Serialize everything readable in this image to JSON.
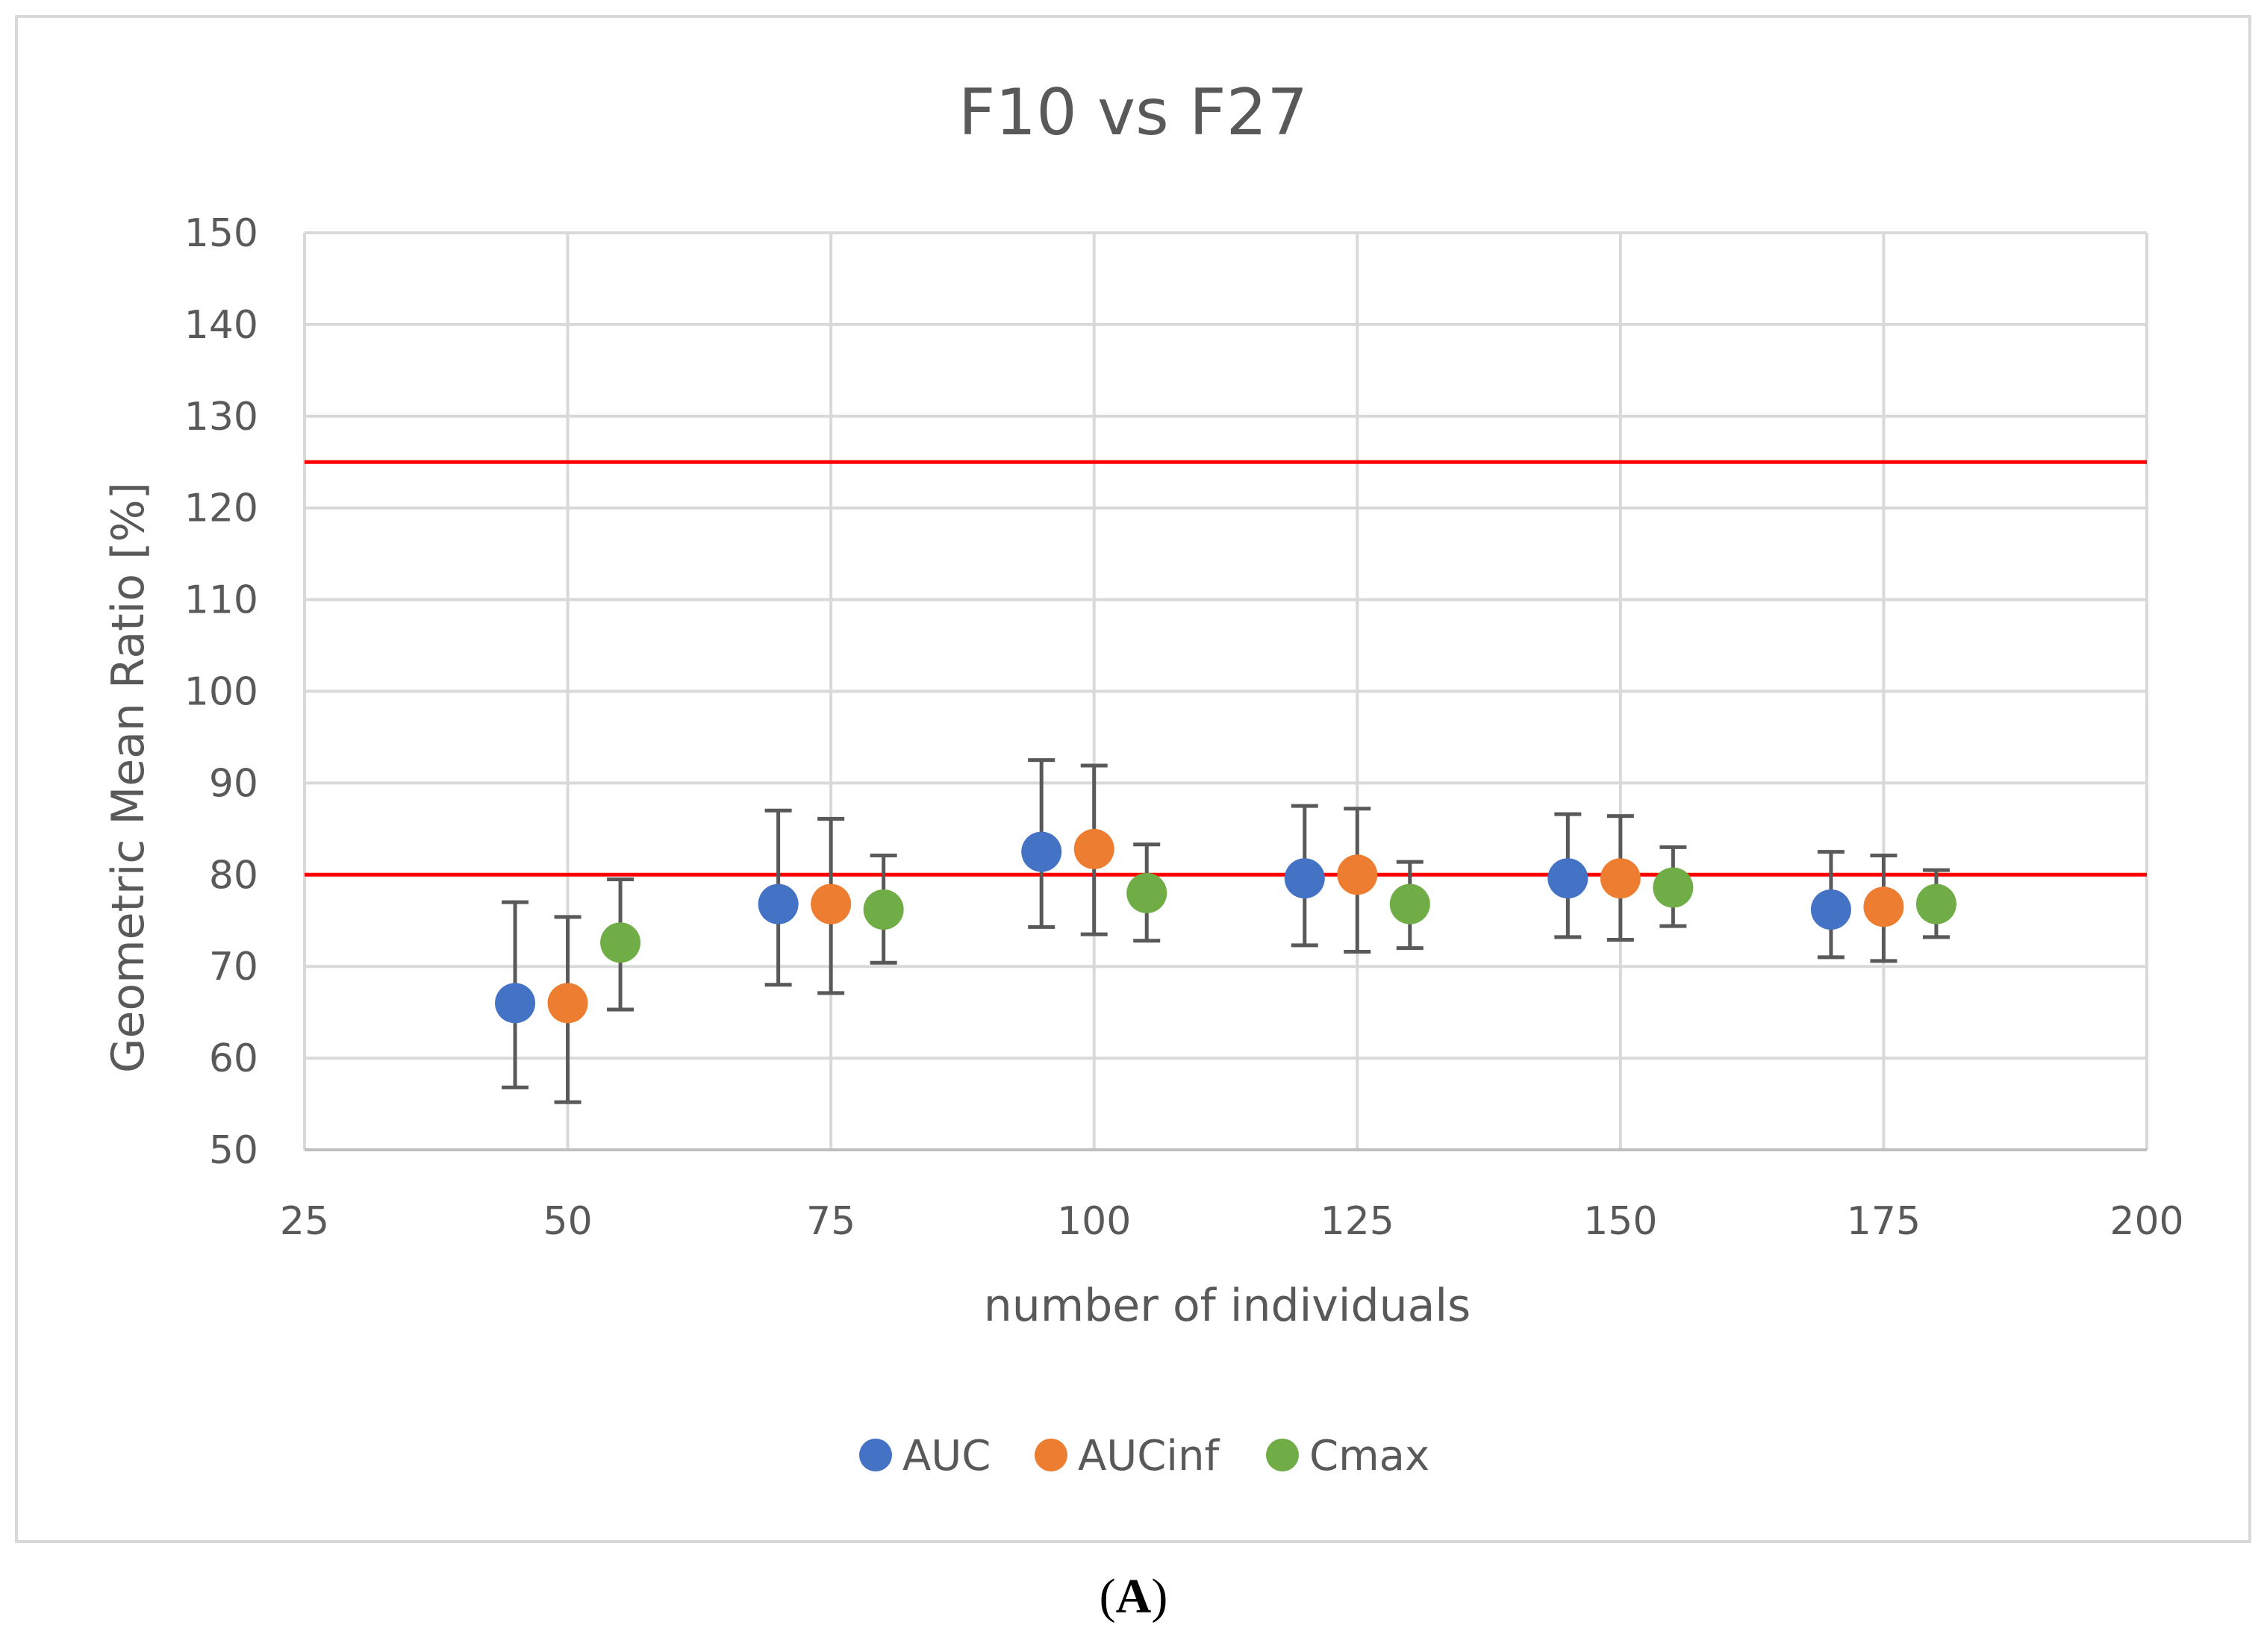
{
  "chart_data": {
    "type": "scatter",
    "title": "F10 vs F27",
    "xlabel": "number of individuals",
    "ylabel": "Geometric Mean Ratio [%]",
    "xlim": [
      25,
      200
    ],
    "ylim": [
      50,
      150
    ],
    "xticks": [
      25,
      50,
      75,
      100,
      125,
      150,
      175,
      200
    ],
    "yticks": [
      50,
      60,
      70,
      80,
      90,
      100,
      110,
      120,
      130,
      140,
      150
    ],
    "grid": true,
    "legend_position": "bottom",
    "reference_lines": [
      {
        "y": 125,
        "color": "#ff0000"
      },
      {
        "y": 80,
        "color": "#ff0000"
      }
    ],
    "series": [
      {
        "name": "AUC",
        "color": "#4472c4",
        "x": [
          45,
          70,
          95,
          120,
          145,
          170
        ],
        "y": [
          66,
          76.8,
          82.5,
          79.6,
          79.6,
          76.2
        ],
        "lower": [
          56.8,
          68,
          74.3,
          72.3,
          73.2,
          71
        ],
        "upper": [
          77,
          87,
          92.5,
          87.5,
          86.6,
          82.5
        ]
      },
      {
        "name": "AUCinf",
        "color": "#ed7d31",
        "x": [
          50,
          75,
          100,
          125,
          150,
          175
        ],
        "y": [
          66,
          76.8,
          82.8,
          80,
          79.6,
          76.5
        ],
        "lower": [
          55.2,
          67.1,
          73.5,
          71.6,
          72.9,
          70.6
        ],
        "upper": [
          75.4,
          86.1,
          91.9,
          87.2,
          86.4,
          82.1
        ]
      },
      {
        "name": "Cmax",
        "color": "#70ad47",
        "x": [
          55,
          80,
          105,
          130,
          155,
          180
        ],
        "y": [
          72.6,
          76.2,
          78,
          76.8,
          78.6,
          76.8
        ],
        "lower": [
          65.3,
          70.4,
          72.8,
          72,
          74.4,
          73.2
        ],
        "upper": [
          79.5,
          82.1,
          83.3,
          81.4,
          83,
          80.5
        ]
      }
    ]
  },
  "caption": {
    "open": "(",
    "letter": "A",
    "close": ")"
  }
}
